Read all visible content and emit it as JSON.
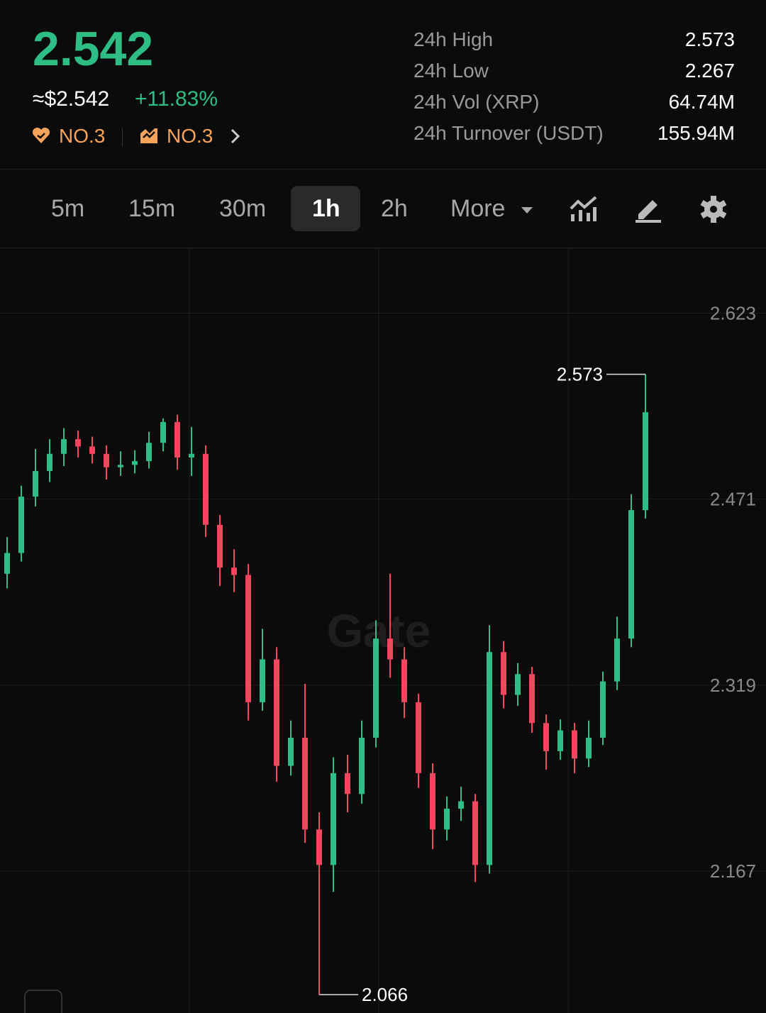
{
  "header": {
    "price": "2.542",
    "approx_price": "≈$2.542",
    "change": "+11.83%",
    "rank_hot": "NO.3",
    "rank_gain": "NO.3"
  },
  "stats": [
    {
      "label": "24h High",
      "value": "2.573"
    },
    {
      "label": "24h Low",
      "value": "2.267"
    },
    {
      "label": "24h Vol (XRP)",
      "value": "64.74M"
    },
    {
      "label": "24h Turnover (USDT)",
      "value": "155.94M"
    }
  ],
  "tabs": [
    "5m",
    "15m",
    "30m",
    "1h",
    "2h",
    "More"
  ],
  "active_tab": 3,
  "chart": {
    "type": "candlestick",
    "watermark": "Gate",
    "open": [
      2.41,
      2.427,
      2.473,
      2.494,
      2.508,
      2.52,
      2.514,
      2.508,
      2.497,
      2.499,
      2.502,
      2.517,
      2.534,
      2.505,
      2.508,
      2.45,
      2.415,
      2.409,
      2.305,
      2.34,
      2.253,
      2.276,
      2.201,
      2.172,
      2.247,
      2.23,
      2.276,
      2.357,
      2.34,
      2.305,
      2.247,
      2.201,
      2.218,
      2.224,
      2.172,
      2.346,
      2.311,
      2.328,
      2.288,
      2.265,
      2.282,
      2.259,
      2.276,
      2.322,
      2.357,
      2.462
    ],
    "high": [
      2.44,
      2.482,
      2.512,
      2.52,
      2.529,
      2.527,
      2.522,
      2.515,
      2.51,
      2.511,
      2.526,
      2.537,
      2.54,
      2.53,
      2.515,
      2.458,
      2.43,
      2.418,
      2.365,
      2.35,
      2.29,
      2.32,
      2.215,
      2.26,
      2.262,
      2.29,
      2.372,
      2.41,
      2.35,
      2.312,
      2.255,
      2.228,
      2.236,
      2.23,
      2.368,
      2.355,
      2.337,
      2.334,
      2.295,
      2.291,
      2.288,
      2.29,
      2.33,
      2.375,
      2.475,
      2.573
    ],
    "low": [
      2.398,
      2.42,
      2.465,
      2.485,
      2.498,
      2.505,
      2.5,
      2.487,
      2.49,
      2.492,
      2.496,
      2.51,
      2.495,
      2.49,
      2.44,
      2.4,
      2.395,
      2.29,
      2.298,
      2.24,
      2.245,
      2.19,
      2.066,
      2.15,
      2.215,
      2.222,
      2.268,
      2.325,
      2.292,
      2.235,
      2.185,
      2.192,
      2.208,
      2.158,
      2.165,
      2.3,
      2.302,
      2.28,
      2.25,
      2.258,
      2.247,
      2.252,
      2.27,
      2.315,
      2.35,
      2.455
    ],
    "close": [
      2.427,
      2.473,
      2.494,
      2.508,
      2.52,
      2.514,
      2.508,
      2.497,
      2.499,
      2.502,
      2.517,
      2.534,
      2.505,
      2.508,
      2.45,
      2.415,
      2.409,
      2.305,
      2.34,
      2.253,
      2.276,
      2.201,
      2.172,
      2.247,
      2.23,
      2.276,
      2.357,
      2.34,
      2.305,
      2.247,
      2.201,
      2.218,
      2.224,
      2.172,
      2.346,
      2.311,
      2.328,
      2.288,
      2.265,
      2.282,
      2.259,
      2.276,
      2.322,
      2.357,
      2.462,
      2.542
    ],
    "up_color": "#2ebd85",
    "down_color": "#f6465d",
    "max_label": "2.573",
    "min_label": "2.066",
    "ylim": [
      2.051,
      2.676
    ],
    "yticks": [
      2.167,
      2.319,
      2.471,
      2.623
    ],
    "grid": true
  }
}
